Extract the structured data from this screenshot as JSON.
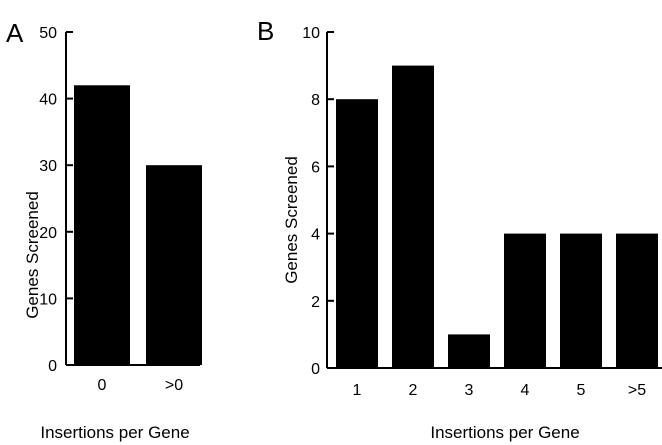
{
  "chart_data": [
    {
      "type": "bar",
      "panel": "A",
      "categories": [
        "0",
        ">0"
      ],
      "values": [
        42,
        30
      ],
      "ylim": [
        0,
        50
      ],
      "yticks": [
        0,
        10,
        20,
        30,
        40,
        50
      ],
      "xlabel": "Insertions per Gene",
      "ylabel": "Genes Screened",
      "grid": false,
      "bar_color": "#000000"
    },
    {
      "type": "bar",
      "panel": "B",
      "categories": [
        "1",
        "2",
        "3",
        "4",
        "5",
        ">5"
      ],
      "values": [
        8,
        9,
        1,
        4,
        4,
        4
      ],
      "ylim": [
        0,
        10
      ],
      "yticks": [
        0,
        2,
        4,
        6,
        8,
        10
      ],
      "xlabel": "Insertions per Gene",
      "ylabel": "Genes Screened",
      "grid": false,
      "bar_color": "#000000"
    }
  ]
}
